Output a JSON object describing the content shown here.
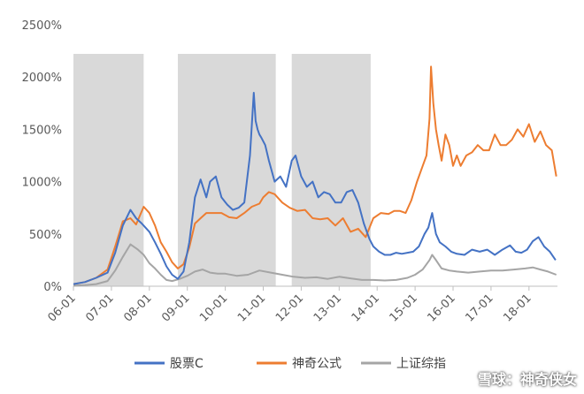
{
  "chart_data": {
    "type": "line",
    "title": "",
    "xlabel": "",
    "ylabel": "",
    "yaxis": {
      "ticks": [
        0,
        500,
        1000,
        1500,
        2000,
        2500
      ],
      "tick_labels": [
        "0%",
        "500%",
        "1000%",
        "1500%",
        "2000%",
        "2500%"
      ],
      "range": [
        0,
        2500
      ]
    },
    "xaxis": {
      "tick_labels": [
        "06-01",
        "07-01",
        "08-01",
        "09-01",
        "10-01",
        "11-01",
        "12-01",
        "13-01",
        "14-01",
        "15-01",
        "16-01",
        "17-01",
        "18-01"
      ],
      "tick_years": [
        2006,
        2007,
        2008,
        2009,
        2010,
        2011,
        2012,
        2013,
        2014,
        2015,
        2016,
        2017,
        2018
      ],
      "range": [
        2006.0,
        2018.75
      ]
    },
    "grid": false,
    "legend": "bottom",
    "shaded_periods": [
      [
        2006.0,
        2007.85
      ],
      [
        2008.75,
        2011.33
      ],
      [
        2011.75,
        2013.83
      ]
    ],
    "series": [
      {
        "name": "股票C",
        "color": "#4472C4",
        "x": [
          2006.0,
          2006.3,
          2006.6,
          2006.9,
          2007.1,
          2007.3,
          2007.5,
          2007.65,
          2007.8,
          2008.0,
          2008.15,
          2008.3,
          2008.45,
          2008.6,
          2008.75,
          2008.9,
          2009.05,
          2009.2,
          2009.35,
          2009.5,
          2009.6,
          2009.75,
          2009.9,
          2010.05,
          2010.2,
          2010.35,
          2010.5,
          2010.65,
          2010.75,
          2010.8,
          2010.85,
          2010.9,
          2010.95,
          2011.05,
          2011.15,
          2011.3,
          2011.45,
          2011.6,
          2011.75,
          2011.85,
          2012.0,
          2012.15,
          2012.3,
          2012.45,
          2012.6,
          2012.75,
          2012.9,
          2013.05,
          2013.2,
          2013.35,
          2013.5,
          2013.65,
          2013.8,
          2013.9,
          2014.05,
          2014.2,
          2014.35,
          2014.5,
          2014.65,
          2014.8,
          2014.95,
          2015.1,
          2015.25,
          2015.35,
          2015.45,
          2015.55,
          2015.65,
          2015.8,
          2015.95,
          2016.1,
          2016.3,
          2016.5,
          2016.7,
          2016.9,
          2017.1,
          2017.3,
          2017.5,
          2017.65,
          2017.8,
          2017.95,
          2018.1,
          2018.25,
          2018.4,
          2018.55,
          2018.7
        ],
        "y": [
          20,
          40,
          80,
          130,
          320,
          580,
          730,
          650,
          600,
          520,
          420,
          310,
          190,
          110,
          70,
          140,
          420,
          850,
          1020,
          850,
          1000,
          1050,
          850,
          780,
          730,
          750,
          800,
          1250,
          1850,
          1580,
          1500,
          1450,
          1420,
          1350,
          1200,
          1000,
          1050,
          950,
          1200,
          1250,
          1050,
          950,
          1000,
          850,
          900,
          880,
          800,
          800,
          900,
          920,
          800,
          600,
          450,
          380,
          330,
          300,
          300,
          320,
          310,
          320,
          330,
          380,
          500,
          560,
          700,
          500,
          420,
          380,
          330,
          310,
          300,
          350,
          330,
          350,
          300,
          350,
          390,
          330,
          320,
          350,
          430,
          470,
          380,
          330,
          250
        ]
      },
      {
        "name": "神奇公式",
        "color": "#ED7D31",
        "x": [
          2006.0,
          2006.3,
          2006.6,
          2006.9,
          2007.1,
          2007.3,
          2007.5,
          2007.65,
          2007.85,
          2008.0,
          2008.15,
          2008.3,
          2008.45,
          2008.6,
          2008.75,
          2008.9,
          2009.05,
          2009.2,
          2009.35,
          2009.5,
          2009.7,
          2009.9,
          2010.1,
          2010.3,
          2010.5,
          2010.7,
          2010.9,
          2011.0,
          2011.15,
          2011.3,
          2011.5,
          2011.7,
          2011.9,
          2012.1,
          2012.3,
          2012.5,
          2012.7,
          2012.9,
          2013.1,
          2013.3,
          2013.5,
          2013.7,
          2013.9,
          2014.1,
          2014.3,
          2014.45,
          2014.6,
          2014.75,
          2014.9,
          2015.05,
          2015.2,
          2015.3,
          2015.38,
          2015.42,
          2015.48,
          2015.55,
          2015.62,
          2015.7,
          2015.8,
          2015.9,
          2016.0,
          2016.1,
          2016.2,
          2016.35,
          2016.5,
          2016.65,
          2016.8,
          2016.95,
          2017.1,
          2017.25,
          2017.4,
          2017.55,
          2017.7,
          2017.85,
          2018.0,
          2018.15,
          2018.3,
          2018.45,
          2018.6,
          2018.72
        ],
        "y": [
          20,
          40,
          80,
          160,
          380,
          620,
          650,
          590,
          760,
          700,
          580,
          420,
          330,
          230,
          170,
          210,
          370,
          600,
          650,
          700,
          700,
          700,
          660,
          650,
          700,
          760,
          790,
          850,
          900,
          880,
          800,
          750,
          720,
          730,
          650,
          640,
          650,
          580,
          650,
          520,
          550,
          470,
          650,
          700,
          690,
          720,
          720,
          700,
          820,
          1000,
          1150,
          1250,
          1600,
          2100,
          1750,
          1500,
          1350,
          1200,
          1450,
          1350,
          1150,
          1250,
          1150,
          1250,
          1280,
          1350,
          1300,
          1300,
          1450,
          1350,
          1350,
          1400,
          1500,
          1430,
          1550,
          1380,
          1480,
          1350,
          1300,
          1050
        ]
      },
      {
        "name": "上证综指",
        "color": "#A5A5A5",
        "x": [
          2006.0,
          2006.3,
          2006.6,
          2006.9,
          2007.1,
          2007.3,
          2007.5,
          2007.7,
          2007.85,
          2008.0,
          2008.15,
          2008.3,
          2008.45,
          2008.6,
          2008.8,
          2009.0,
          2009.2,
          2009.4,
          2009.6,
          2009.8,
          2010.0,
          2010.3,
          2010.6,
          2010.9,
          2011.2,
          2011.5,
          2011.8,
          2012.1,
          2012.4,
          2012.7,
          2013.0,
          2013.3,
          2013.6,
          2013.9,
          2014.2,
          2014.5,
          2014.8,
          2015.0,
          2015.2,
          2015.38,
          2015.45,
          2015.55,
          2015.7,
          2015.9,
          2016.1,
          2016.4,
          2016.7,
          2017.0,
          2017.3,
          2017.6,
          2017.9,
          2018.1,
          2018.3,
          2018.5,
          2018.72
        ],
        "y": [
          5,
          10,
          20,
          50,
          150,
          280,
          400,
          350,
          300,
          220,
          170,
          110,
          60,
          50,
          70,
          100,
          140,
          160,
          130,
          120,
          120,
          100,
          110,
          150,
          130,
          110,
          90,
          80,
          85,
          70,
          90,
          75,
          60,
          60,
          55,
          60,
          80,
          110,
          160,
          250,
          300,
          250,
          170,
          150,
          140,
          130,
          140,
          150,
          150,
          160,
          170,
          180,
          160,
          140,
          110
        ]
      }
    ]
  },
  "legend": {
    "items": [
      {
        "label": "股票C",
        "color": "#4472C4"
      },
      {
        "label": "神奇公式",
        "color": "#ED7D31"
      },
      {
        "label": "上证综指",
        "color": "#A5A5A5"
      }
    ]
  },
  "watermark": {
    "text": "雪球：神奇侠女"
  }
}
